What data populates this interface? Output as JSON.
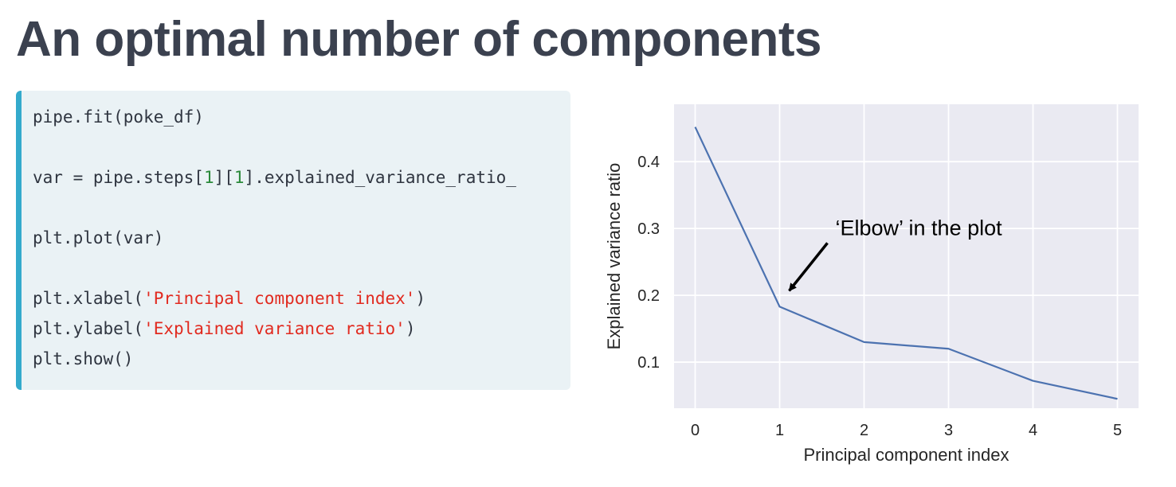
{
  "slide": {
    "title": "An optimal number of components"
  },
  "code": {
    "line1": "pipe.fit(poke_df)",
    "line2_a": "var = pipe.steps[",
    "line2_n1": "1",
    "line2_b": "][",
    "line2_n2": "1",
    "line2_c": "].explained_variance_ratio_",
    "line3": "plt.plot(var)",
    "line4_a": "plt.xlabel(",
    "line4_s": "'Principal component index'",
    "line4_b": ")",
    "line5_a": "plt.ylabel(",
    "line5_s": "'Explained variance ratio'",
    "line5_b": ")",
    "line6": "plt.show()"
  },
  "chart_data": {
    "type": "line",
    "x": [
      0,
      1,
      2,
      3,
      4,
      5
    ],
    "series": [
      {
        "values": [
          0.452,
          0.183,
          0.13,
          0.12,
          0.072,
          0.045
        ],
        "color": "#4c72b0"
      }
    ],
    "title": "",
    "xlabel": "Principal component index",
    "ylabel": "Explained variance ratio",
    "xticks": [
      0,
      1,
      2,
      3,
      4,
      5
    ],
    "yticks": [
      0.1,
      0.2,
      0.3,
      0.4
    ],
    "xlim": [
      -0.25,
      5.25
    ],
    "ylim": [
      0.031,
      0.486
    ],
    "grid": true,
    "style": "seaborn-darkgrid",
    "annotation": {
      "text": "‘Elbow’ in the plot",
      "x": 1,
      "y": 0.183
    }
  }
}
